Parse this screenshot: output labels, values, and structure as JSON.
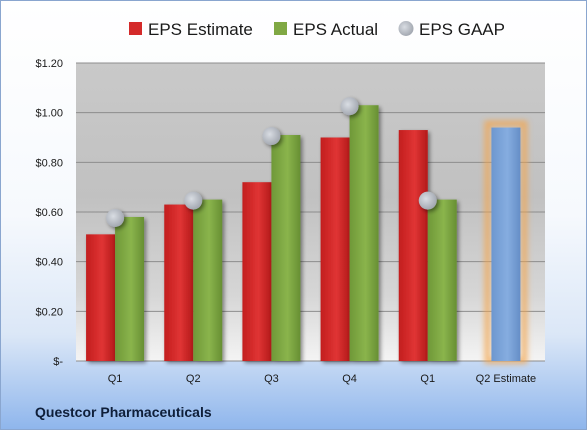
{
  "chart_data": {
    "type": "bar",
    "categories": [
      "Q1",
      "Q2",
      "Q3",
      "Q4",
      "Q1",
      "Q2 Estimate"
    ],
    "series": [
      {
        "name": "EPS Estimate",
        "type": "bar",
        "color": "#d42a2a",
        "values": [
          0.51,
          0.63,
          0.72,
          0.9,
          0.93,
          null
        ]
      },
      {
        "name": "EPS Actual",
        "type": "bar",
        "color": "#80a844",
        "values": [
          0.58,
          0.65,
          0.91,
          1.03,
          0.65,
          null
        ]
      },
      {
        "name": "EPS GAAP",
        "type": "scatter",
        "color": "#b5bac3",
        "values": [
          0.58,
          0.65,
          0.91,
          1.03,
          0.65,
          null
        ]
      }
    ],
    "estimate_bar": {
      "category": "Q2 Estimate",
      "value": 0.94,
      "color": "#7ba4d8",
      "glow_color": "#f4a64e"
    },
    "y_ticks": [
      {
        "value": 0,
        "label": "$-"
      },
      {
        "value": 0.2,
        "label": "$0.20"
      },
      {
        "value": 0.4,
        "label": "$0.40"
      },
      {
        "value": 0.6,
        "label": "$0.60"
      },
      {
        "value": 0.8,
        "label": "$0.80"
      },
      {
        "value": 1.0,
        "label": "$1.00"
      },
      {
        "value": 1.2,
        "label": "$1.20"
      }
    ],
    "ylim": [
      0,
      1.2
    ],
    "grid": true,
    "legend_position": "top",
    "company": "Questcor Pharmaceuticals"
  }
}
